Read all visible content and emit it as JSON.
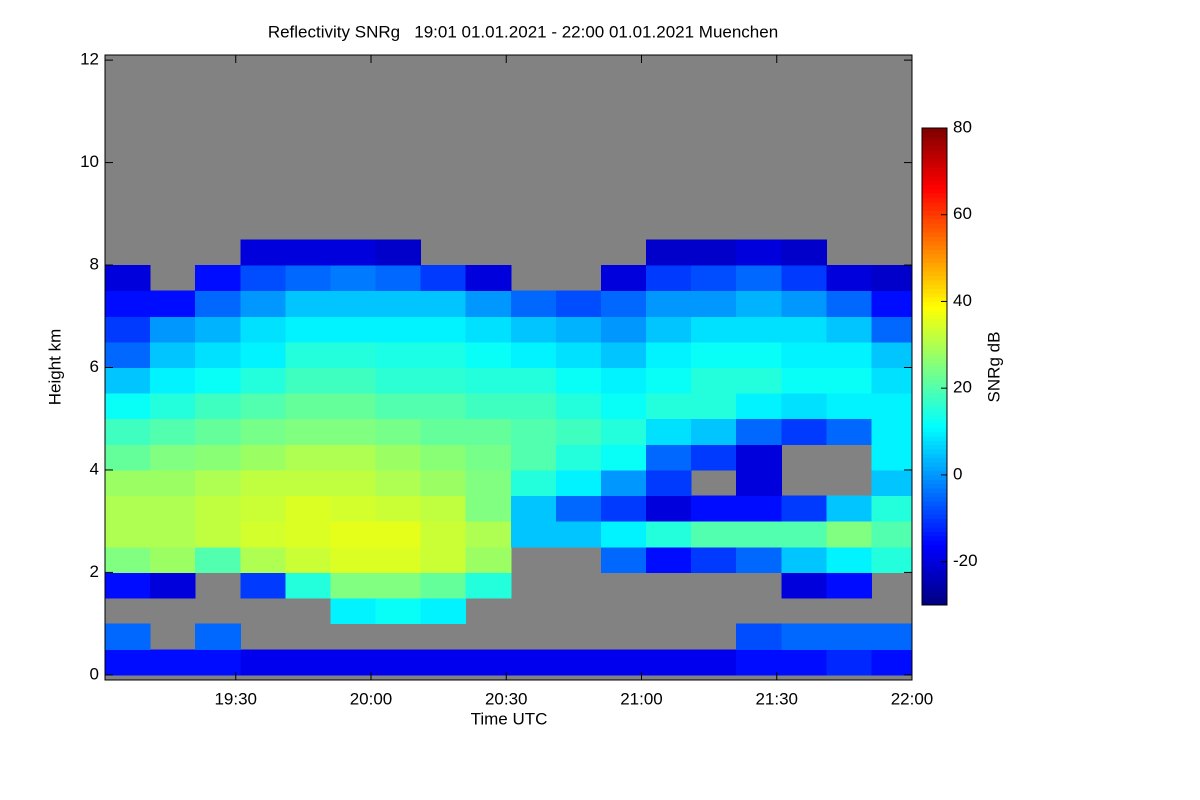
{
  "chart_data": {
    "type": "heatmap",
    "title": "Reflectivity SNRg   19:01 01.01.2021 - 22:00 01.01.2021 Muenchen",
    "xlabel": "Time UTC",
    "ylabel": "Height km",
    "colorbar_label": "SNRg dB",
    "xlim": [
      "19:01",
      "22:00"
    ],
    "xticks": [
      "19:30",
      "20:00",
      "20:30",
      "21:00",
      "21:30",
      "22:00"
    ],
    "ylim": [
      -0.1,
      12.1
    ],
    "yticks": [
      0,
      2,
      4,
      6,
      8,
      10,
      12
    ],
    "zlim": [
      -30,
      80
    ],
    "zticks": [
      -20,
      0,
      20,
      40,
      60,
      80
    ],
    "colormap": "jet",
    "background": "#828282",
    "x": [
      "19:06",
      "19:16",
      "19:26",
      "19:36",
      "19:46",
      "19:56",
      "20:06",
      "20:16",
      "20:26",
      "20:36",
      "20:46",
      "20:56",
      "21:06",
      "21:16",
      "21:26",
      "21:36",
      "21:46",
      "21:56"
    ],
    "y": [
      0.25,
      0.75,
      1.25,
      1.75,
      2.25,
      2.75,
      3.25,
      3.75,
      4.25,
      4.75,
      5.25,
      5.75,
      6.25,
      6.75,
      7.25,
      7.75,
      8.25,
      8.75,
      9.25,
      9.75,
      10.25,
      10.75,
      11.25,
      11.75
    ],
    "z": [
      [
        -15,
        -15,
        -15,
        -18,
        -18,
        -18,
        -18,
        -18,
        -18,
        -18,
        -18,
        -18,
        -18,
        -18,
        -15,
        -15,
        -12,
        -15
      ],
      [
        -5,
        null,
        -5,
        null,
        null,
        null,
        null,
        null,
        null,
        null,
        null,
        null,
        null,
        null,
        -8,
        -5,
        -5,
        -5
      ],
      [
        null,
        null,
        null,
        null,
        null,
        10,
        12,
        10,
        null,
        null,
        null,
        null,
        null,
        null,
        null,
        null,
        null,
        null
      ],
      [
        -15,
        -20,
        null,
        -10,
        15,
        25,
        25,
        22,
        15,
        null,
        null,
        null,
        null,
        null,
        null,
        -20,
        -15,
        null
      ],
      [
        25,
        28,
        20,
        30,
        33,
        35,
        35,
        33,
        28,
        null,
        null,
        -5,
        -15,
        -10,
        -5,
        5,
        10,
        15
      ],
      [
        30,
        30,
        32,
        34,
        35,
        36,
        36,
        33,
        30,
        5,
        5,
        10,
        15,
        20,
        20,
        20,
        25,
        20
      ],
      [
        30,
        30,
        32,
        33,
        35,
        34,
        33,
        32,
        25,
        5,
        -5,
        -10,
        -20,
        -15,
        -15,
        -10,
        5,
        15
      ],
      [
        28,
        28,
        30,
        32,
        32,
        32,
        30,
        28,
        25,
        15,
        10,
        0,
        -10,
        null,
        -20,
        null,
        null,
        5
      ],
      [
        22,
        25,
        26,
        28,
        30,
        30,
        28,
        26,
        24,
        20,
        15,
        12,
        -5,
        -10,
        -20,
        null,
        null,
        10
      ],
      [
        18,
        20,
        22,
        24,
        25,
        25,
        24,
        22,
        22,
        20,
        18,
        15,
        8,
        5,
        -5,
        -10,
        -5,
        10
      ],
      [
        12,
        15,
        18,
        20,
        22,
        22,
        20,
        20,
        18,
        18,
        15,
        12,
        15,
        15,
        10,
        8,
        10,
        10
      ],
      [
        5,
        10,
        12,
        15,
        18,
        18,
        16,
        16,
        15,
        15,
        12,
        10,
        12,
        15,
        15,
        12,
        12,
        8
      ],
      [
        -5,
        5,
        8,
        10,
        15,
        15,
        14,
        14,
        12,
        10,
        8,
        5,
        10,
        12,
        12,
        10,
        10,
        5
      ],
      [
        -10,
        0,
        3,
        8,
        10,
        10,
        10,
        10,
        8,
        5,
        3,
        0,
        5,
        8,
        8,
        8,
        5,
        -5
      ],
      [
        -15,
        -15,
        -5,
        0,
        5,
        5,
        5,
        5,
        0,
        -5,
        -8,
        -5,
        0,
        0,
        3,
        0,
        -5,
        -15
      ],
      [
        -20,
        null,
        -15,
        -8,
        -5,
        -3,
        -5,
        -10,
        -20,
        null,
        null,
        -20,
        -10,
        -8,
        -5,
        -10,
        -20,
        -22
      ],
      [
        null,
        null,
        null,
        -20,
        -20,
        -20,
        -22,
        null,
        null,
        null,
        null,
        null,
        -22,
        -22,
        -20,
        -22,
        null,
        null
      ],
      [
        null,
        null,
        null,
        null,
        null,
        null,
        null,
        null,
        null,
        null,
        null,
        null,
        null,
        null,
        null,
        null,
        null,
        null
      ],
      [
        null,
        null,
        null,
        null,
        null,
        null,
        null,
        null,
        null,
        null,
        null,
        null,
        null,
        null,
        null,
        null,
        null,
        null
      ],
      [
        null,
        null,
        null,
        null,
        null,
        null,
        null,
        null,
        null,
        null,
        null,
        null,
        null,
        null,
        null,
        null,
        null,
        null
      ],
      [
        null,
        null,
        null,
        null,
        null,
        null,
        null,
        null,
        null,
        null,
        null,
        null,
        null,
        null,
        null,
        null,
        null,
        null
      ],
      [
        null,
        null,
        null,
        null,
        null,
        null,
        null,
        null,
        null,
        null,
        null,
        null,
        null,
        null,
        null,
        null,
        null,
        null
      ],
      [
        null,
        null,
        null,
        null,
        null,
        null,
        null,
        null,
        null,
        null,
        null,
        null,
        null,
        null,
        null,
        null,
        null,
        null
      ],
      [
        null,
        null,
        null,
        null,
        null,
        null,
        null,
        null,
        null,
        null,
        null,
        null,
        null,
        null,
        null,
        null,
        null,
        null
      ]
    ]
  }
}
